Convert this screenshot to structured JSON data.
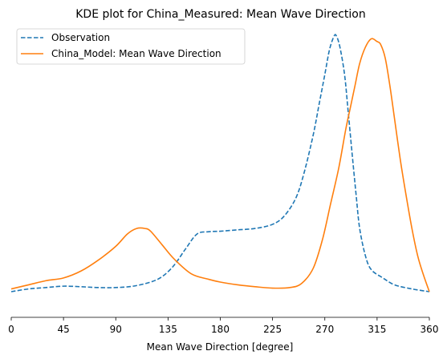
{
  "chart_data": {
    "type": "line",
    "title": "KDE plot for China_Measured: Mean Wave Direction",
    "xlabel": "Mean Wave Direction [degree]",
    "ylabel": "",
    "xlim": [
      0,
      360
    ],
    "ylim": [
      0,
      1
    ],
    "xticks": [
      0,
      45,
      90,
      135,
      180,
      225,
      270,
      315,
      360
    ],
    "grid": false,
    "legend_position": "top-left",
    "series": [
      {
        "name": "Observation",
        "color": "#1f77b4",
        "linestyle": "dashed",
        "x": [
          0,
          15,
          30,
          45,
          60,
          75,
          90,
          105,
          120,
          130,
          140,
          150,
          160,
          170,
          180,
          195,
          210,
          225,
          235,
          245,
          252,
          260,
          265,
          270,
          274,
          278,
          280,
          283,
          287,
          290,
          294,
          297,
          300,
          305,
          310,
          320,
          330,
          345,
          360
        ],
        "y": [
          0.07,
          0.08,
          0.085,
          0.09,
          0.088,
          0.085,
          0.085,
          0.09,
          0.105,
          0.125,
          0.165,
          0.225,
          0.28,
          0.288,
          0.29,
          0.295,
          0.3,
          0.315,
          0.345,
          0.41,
          0.5,
          0.64,
          0.75,
          0.86,
          0.95,
          1.0,
          1.0,
          0.96,
          0.86,
          0.73,
          0.55,
          0.42,
          0.3,
          0.2,
          0.15,
          0.12,
          0.095,
          0.08,
          0.07
        ]
      },
      {
        "name": "China_Model: Mean Wave Direction",
        "color": "#ff7f0e",
        "linestyle": "solid",
        "x": [
          0,
          15,
          30,
          45,
          60,
          75,
          90,
          100,
          108,
          115,
          120,
          130,
          140,
          155,
          170,
          180,
          195,
          210,
          225,
          240,
          250,
          260,
          268,
          275,
          282,
          288,
          292,
          296,
          300,
          305,
          310,
          315,
          318,
          322,
          326,
          330,
          335,
          340,
          345,
          350,
          355,
          360
        ],
        "y": [
          0.08,
          0.095,
          0.11,
          0.12,
          0.145,
          0.185,
          0.235,
          0.28,
          0.3,
          0.3,
          0.29,
          0.24,
          0.19,
          0.135,
          0.115,
          0.105,
          0.095,
          0.088,
          0.083,
          0.085,
          0.1,
          0.155,
          0.26,
          0.39,
          0.52,
          0.66,
          0.74,
          0.82,
          0.9,
          0.96,
          0.99,
          0.98,
          0.97,
          0.92,
          0.82,
          0.7,
          0.55,
          0.42,
          0.3,
          0.2,
          0.13,
          0.07
        ]
      }
    ]
  }
}
